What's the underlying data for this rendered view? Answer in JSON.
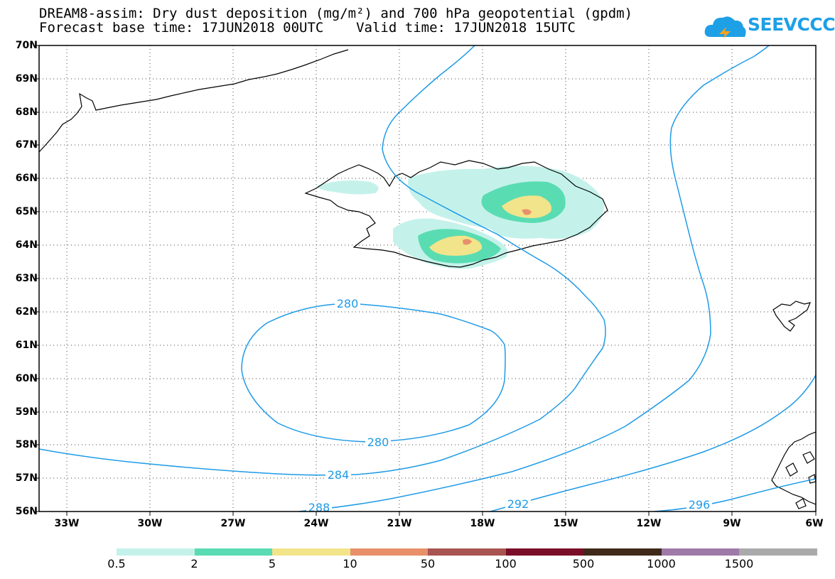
{
  "header": {
    "title_line1": "DREAM8-assim: Dry dust deposition (mg/m²) and 700 hPa geopotential (gpdm)",
    "title_line2": "Forecast base time: 17JUN2018 00UTC    Valid time: 17JUN2018 15UTC"
  },
  "logo": {
    "text": "SEEVCCC",
    "color": "#1ea0e6",
    "icon": "cloud-logo-icon"
  },
  "map": {
    "lat_labels": [
      "70N",
      "69N",
      "68N",
      "67N",
      "66N",
      "65N",
      "64N",
      "63N",
      "62N",
      "61N",
      "60N",
      "59N",
      "58N",
      "57N",
      "56N"
    ],
    "lon_labels": [
      "33W",
      "30W",
      "27W",
      "24W",
      "21W",
      "18W",
      "15W",
      "12W",
      "9W",
      "6W"
    ],
    "lat_range": [
      56,
      70
    ],
    "lon_range": [
      -34,
      -6
    ],
    "grid": "dotted",
    "contour_color": "#1e9be6",
    "contour_labels": [
      "280",
      "280",
      "284",
      "288",
      "292",
      "296"
    ],
    "dust_colors": {
      "0.5-2": "#c4f2ea",
      "2-5": "#5adcb2",
      "5-10": "#f2e48a",
      "10-50": "#e8906a"
    }
  },
  "colorbar": {
    "labels": [
      "0.5",
      "2",
      "5",
      "10",
      "50",
      "100",
      "500",
      "1000",
      "1500"
    ],
    "colors": [
      "#c4f2ea",
      "#5adcb2",
      "#f2e48a",
      "#e8906a",
      "#a85450",
      "#7a0d28",
      "#3e2a18",
      "#9e7aa8",
      "#aaaaaa"
    ]
  }
}
